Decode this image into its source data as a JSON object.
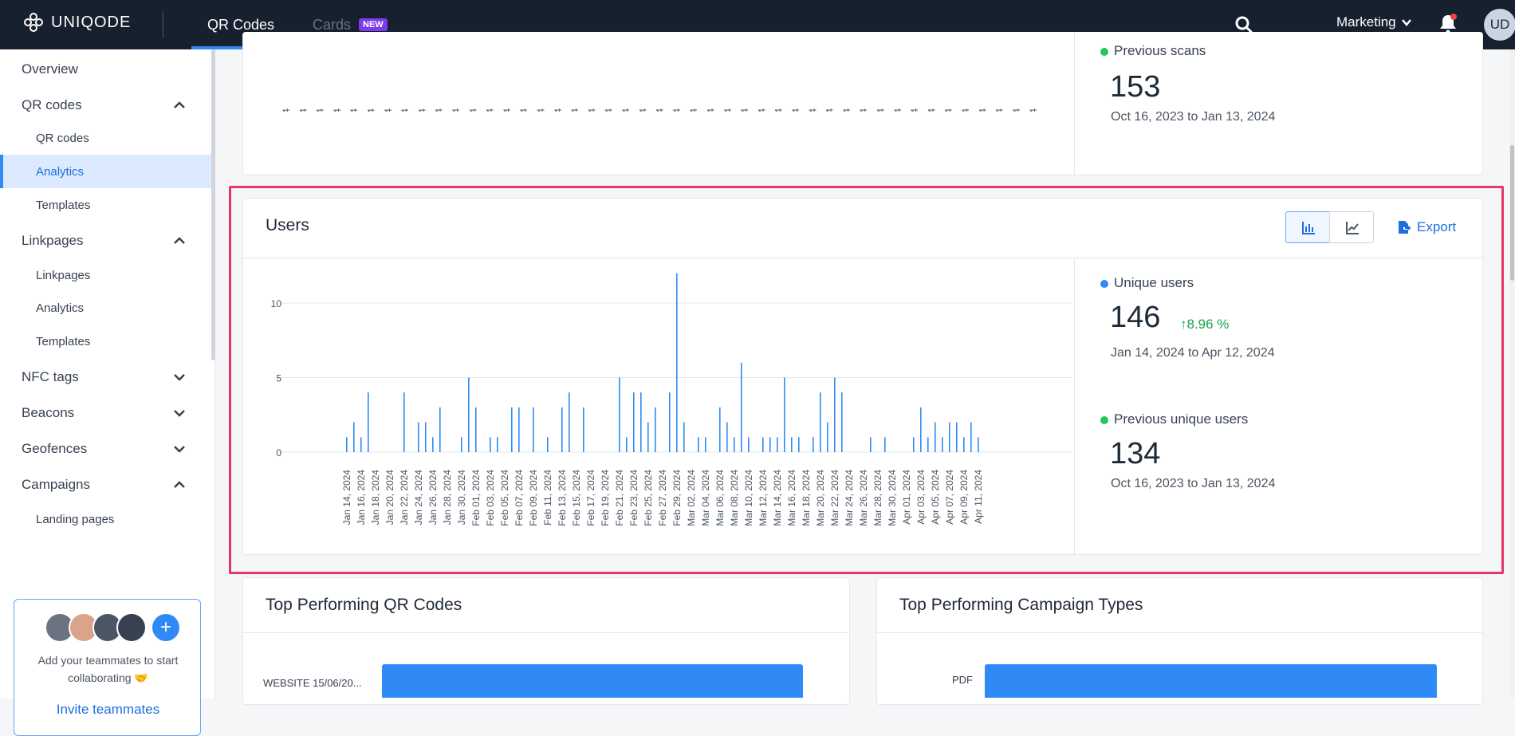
{
  "topbar": {
    "logo": "UNIQODE",
    "tab_qr": "QR Codes",
    "tab_cards": "Cards",
    "cards_badge": "NEW",
    "team": "Marketing",
    "avatar": "UD"
  },
  "sidebar": {
    "overview": "Overview",
    "qr_codes": "QR codes",
    "qr_sub": [
      "QR codes",
      "Analytics",
      "Templates"
    ],
    "linkpages": "Linkpages",
    "link_sub": [
      "Linkpages",
      "Analytics",
      "Templates"
    ],
    "nfc": "NFC tags",
    "beacons": "Beacons",
    "geofences": "Geofences",
    "campaigns": "Campaigns",
    "landing": "Landing pages",
    "invite_text": "Add your teammates to start collaborating 🤝",
    "invite_link": "Invite teammates"
  },
  "scans_card": {
    "prev_label": "Previous scans",
    "prev_value": "153",
    "prev_range": "Oct 16, 2023 to Jan 13, 2024",
    "tick_labels": [
      "Jan 14, 2024",
      "Jan 16, 2024",
      "Jan 18, 2024",
      "Jan 20, 2024",
      "Jan 22, 2024",
      "Jan 24, 2024",
      "Jan 26, 2024",
      "Jan 28, 2024",
      "Jan 30, 2024",
      "Feb 01, 2024",
      "Feb 03, 2024",
      "Feb 05, 2024",
      "Feb 07, 2024",
      "Feb 09, 2024",
      "Feb 11, 2024",
      "Feb 13, 2024",
      "Feb 15, 2024",
      "Feb 17, 2024",
      "Feb 19, 2024",
      "Feb 21, 2024",
      "Feb 23, 2024",
      "Feb 25, 2024",
      "Feb 27, 2024",
      "Feb 29, 2024",
      "Mar 02, 2024",
      "Mar 04, 2024",
      "Mar 06, 2024",
      "Mar 08, 2024",
      "Mar 10, 2024",
      "Mar 12, 2024",
      "Mar 14, 2024",
      "Mar 16, 2024",
      "Mar 18, 2024",
      "Mar 20, 2024",
      "Mar 22, 2024",
      "Mar 24, 2024",
      "Mar 26, 2024",
      "Mar 28, 2024",
      "Mar 30, 2024",
      "Apr 01, 2024",
      "Apr 03, 2024",
      "Apr 05, 2024",
      "Apr 07, 2024",
      "Apr 09, 2024",
      "Apr 11, 2024"
    ]
  },
  "users_card": {
    "title": "Users",
    "export": "Export",
    "unique_label": "Unique users",
    "unique_value": "146",
    "unique_change": "8.96 %",
    "unique_range": "Jan 14, 2024 to Apr 12, 2024",
    "prev_label": "Previous unique users",
    "prev_value": "134",
    "prev_range": "Oct 16, 2023 to Jan 13, 2024"
  },
  "chart_data": {
    "type": "bar",
    "title": "Users",
    "xlabel": "",
    "ylabel": "",
    "ylim": [
      0,
      12
    ],
    "yticks": [
      0,
      5,
      10
    ],
    "grid": true,
    "categories": [
      "Jan 14, 2024",
      "Jan 15, 2024",
      "Jan 16, 2024",
      "Jan 17, 2024",
      "Jan 18, 2024",
      "Jan 19, 2024",
      "Jan 20, 2024",
      "Jan 21, 2024",
      "Jan 22, 2024",
      "Jan 23, 2024",
      "Jan 24, 2024",
      "Jan 25, 2024",
      "Jan 26, 2024",
      "Jan 27, 2024",
      "Jan 28, 2024",
      "Jan 29, 2024",
      "Jan 30, 2024",
      "Jan 31, 2024",
      "Feb 01, 2024",
      "Feb 02, 2024",
      "Feb 03, 2024",
      "Feb 04, 2024",
      "Feb 05, 2024",
      "Feb 06, 2024",
      "Feb 07, 2024",
      "Feb 08, 2024",
      "Feb 09, 2024",
      "Feb 10, 2024",
      "Feb 11, 2024",
      "Feb 12, 2024",
      "Feb 13, 2024",
      "Feb 14, 2024",
      "Feb 15, 2024",
      "Feb 16, 2024",
      "Feb 17, 2024",
      "Feb 18, 2024",
      "Feb 19, 2024",
      "Feb 20, 2024",
      "Feb 21, 2024",
      "Feb 22, 2024",
      "Feb 23, 2024",
      "Feb 24, 2024",
      "Feb 25, 2024",
      "Feb 26, 2024",
      "Feb 27, 2024",
      "Feb 28, 2024",
      "Feb 29, 2024",
      "Mar 01, 2024",
      "Mar 02, 2024",
      "Mar 03, 2024",
      "Mar 04, 2024",
      "Mar 05, 2024",
      "Mar 06, 2024",
      "Mar 07, 2024",
      "Mar 08, 2024",
      "Mar 09, 2024",
      "Mar 10, 2024",
      "Mar 11, 2024",
      "Mar 12, 2024",
      "Mar 13, 2024",
      "Mar 14, 2024",
      "Mar 15, 2024",
      "Mar 16, 2024",
      "Mar 17, 2024",
      "Mar 18, 2024",
      "Mar 19, 2024",
      "Mar 20, 2024",
      "Mar 21, 2024",
      "Mar 22, 2024",
      "Mar 23, 2024",
      "Mar 24, 2024",
      "Mar 25, 2024",
      "Mar 26, 2024",
      "Mar 27, 2024",
      "Mar 28, 2024",
      "Mar 29, 2024",
      "Mar 30, 2024",
      "Mar 31, 2024",
      "Apr 01, 2024",
      "Apr 02, 2024",
      "Apr 03, 2024",
      "Apr 04, 2024",
      "Apr 05, 2024",
      "Apr 06, 2024",
      "Apr 07, 2024",
      "Apr 08, 2024",
      "Apr 09, 2024",
      "Apr 10, 2024",
      "Apr 11, 2024",
      "Apr 12, 2024"
    ],
    "values": [
      1,
      2,
      1,
      4,
      0,
      0,
      0,
      0,
      4,
      0,
      2,
      2,
      1,
      3,
      0,
      0,
      1,
      5,
      3,
      0,
      1,
      1,
      0,
      3,
      3,
      0,
      3,
      0,
      1,
      0,
      3,
      4,
      0,
      3,
      0,
      0,
      0,
      0,
      5,
      1,
      4,
      4,
      2,
      3,
      0,
      4,
      12,
      2,
      0,
      1,
      1,
      0,
      3,
      2,
      1,
      6,
      1,
      0,
      1,
      1,
      1,
      5,
      1,
      1,
      0,
      1,
      4,
      2,
      5,
      4,
      0,
      0,
      0,
      1,
      0,
      1,
      0,
      0,
      0,
      1,
      3,
      1,
      2,
      1,
      2,
      2,
      1,
      2,
      1,
      0
    ],
    "tick_labels": [
      "Jan 14, 2024",
      "Jan 16, 2024",
      "Jan 18, 2024",
      "Jan 20, 2024",
      "Jan 22, 2024",
      "Jan 24, 2024",
      "Jan 26, 2024",
      "Jan 28, 2024",
      "Jan 30, 2024",
      "Feb 01, 2024",
      "Feb 03, 2024",
      "Feb 05, 2024",
      "Feb 07, 2024",
      "Feb 09, 2024",
      "Feb 11, 2024",
      "Feb 13, 2024",
      "Feb 15, 2024",
      "Feb 17, 2024",
      "Feb 19, 2024",
      "Feb 21, 2024",
      "Feb 23, 2024",
      "Feb 25, 2024",
      "Feb 27, 2024",
      "Feb 29, 2024",
      "Mar 02, 2024",
      "Mar 04, 2024",
      "Mar 06, 2024",
      "Mar 08, 2024",
      "Mar 10, 2024",
      "Mar 12, 2024",
      "Mar 14, 2024",
      "Mar 16, 2024",
      "Mar 18, 2024",
      "Mar 20, 2024",
      "Mar 22, 2024",
      "Mar 24, 2024",
      "Mar 26, 2024",
      "Mar 28, 2024",
      "Mar 30, 2024",
      "Apr 01, 2024",
      "Apr 03, 2024",
      "Apr 05, 2024",
      "Apr 07, 2024",
      "Apr 09, 2024",
      "Apr 11, 2024"
    ],
    "color": "#2f8af5"
  },
  "top_qr": {
    "title": "Top Performing QR Codes",
    "bar_label": "WEBSITE 15/06/20..."
  },
  "top_campaign": {
    "title": "Top Performing Campaign Types",
    "bar_label": "PDF"
  },
  "colors": {
    "accent": "#2f8af5",
    "topbar": "#16202e",
    "highlight": "#e4386a",
    "green": "#16a34a"
  }
}
